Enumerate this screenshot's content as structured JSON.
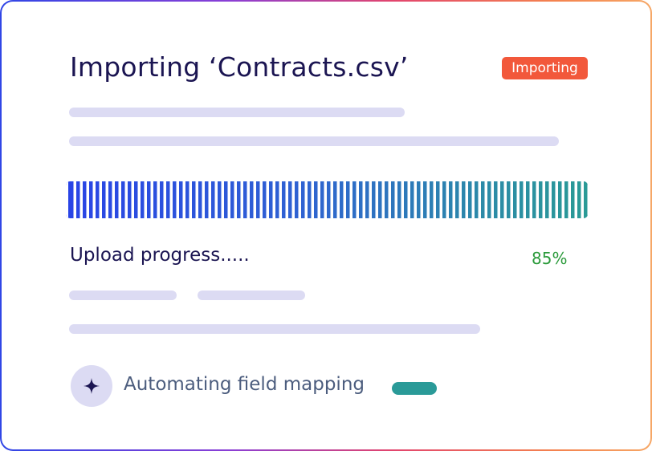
{
  "header": {
    "title": "Importing ‘Contracts.csv’",
    "badge": "Importing"
  },
  "progress": {
    "label": "Upload progress.....",
    "percent": "85%"
  },
  "status": {
    "text": "Automating field mapping"
  }
}
